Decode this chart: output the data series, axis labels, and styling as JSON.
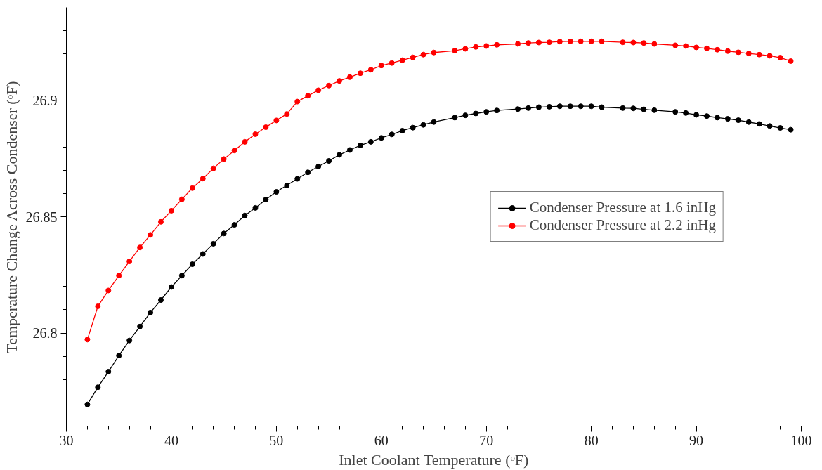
{
  "chart_data": {
    "type": "line",
    "xlabel": "Inlet Coolant Temperature (ᵒF)",
    "ylabel": "Temperature Change Across Condenser (ᵒF)",
    "xlim": [
      30,
      100
    ],
    "ylim": [
      26.76,
      26.94
    ],
    "xticks": [
      30,
      {
        "value": 32,
        "label": null
      },
      {
        "value": 34,
        "label": null
      },
      {
        "value": 36,
        "label": null
      },
      {
        "value": 38,
        "label": null
      },
      40,
      {
        "value": 42,
        "label": null
      },
      {
        "value": 44,
        "label": null
      },
      {
        "value": 46,
        "label": null
      },
      {
        "value": 48,
        "label": null
      },
      50,
      {
        "value": 52,
        "label": null
      },
      {
        "value": 54,
        "label": null
      },
      {
        "value": 56,
        "label": null
      },
      {
        "value": 58,
        "label": null
      },
      60,
      {
        "value": 62,
        "label": null
      },
      {
        "value": 64,
        "label": null
      },
      {
        "value": 66,
        "label": null
      },
      {
        "value": 68,
        "label": null
      },
      70,
      {
        "value": 72,
        "label": null
      },
      {
        "value": 74,
        "label": null
      },
      {
        "value": 76,
        "label": null
      },
      {
        "value": 78,
        "label": null
      },
      80,
      {
        "value": 82,
        "label": null
      },
      {
        "value": 84,
        "label": null
      },
      {
        "value": 86,
        "label": null
      },
      {
        "value": 88,
        "label": null
      },
      90,
      {
        "value": 92,
        "label": null
      },
      {
        "value": 94,
        "label": null
      },
      {
        "value": 96,
        "label": null
      },
      {
        "value": 98,
        "label": null
      },
      100
    ],
    "yticks": [
      {
        "value": 26.76,
        "label": null
      },
      {
        "value": 26.77,
        "label": null
      },
      {
        "value": 26.78,
        "label": null
      },
      {
        "value": 26.79,
        "label": null
      },
      26.8,
      {
        "value": 26.81,
        "label": null
      },
      {
        "value": 26.82,
        "label": null
      },
      {
        "value": 26.83,
        "label": null
      },
      {
        "value": 26.84,
        "label": null
      },
      26.85,
      {
        "value": 26.86,
        "label": null
      },
      {
        "value": 26.87,
        "label": null
      },
      {
        "value": 26.88,
        "label": null
      },
      {
        "value": 26.89,
        "label": null
      },
      26.9,
      {
        "value": 26.91,
        "label": null
      },
      {
        "value": 26.92,
        "label": null
      },
      {
        "value": 26.93,
        "label": null
      }
    ],
    "grid": false,
    "legend": "right",
    "marker": "circle",
    "line_style": "solid",
    "series": [
      {
        "name": "Condenser Pressure at 1.6 inHg",
        "color": "#000000",
        "x": [
          32,
          33,
          34,
          35,
          36,
          37,
          38,
          39,
          40,
          41,
          42,
          43,
          44,
          45,
          46,
          47,
          48,
          49,
          50,
          51,
          52,
          53,
          54,
          55,
          56,
          57,
          58,
          59,
          60,
          61,
          62,
          63,
          64,
          65,
          67,
          68,
          69,
          70,
          71,
          73,
          74,
          75,
          76,
          77,
          78,
          79,
          80,
          81,
          83,
          84,
          85,
          86,
          88,
          89,
          90,
          91,
          92,
          93,
          94,
          95,
          96,
          97,
          98,
          99
        ],
        "values": [
          26.7693,
          26.7767,
          26.7834,
          26.7903,
          26.7968,
          26.8028,
          26.8088,
          26.8142,
          26.8198,
          26.8247,
          26.8296,
          26.834,
          26.8384,
          26.8428,
          26.8465,
          26.8505,
          26.8538,
          26.8574,
          26.8607,
          26.8635,
          26.8663,
          26.8691,
          26.8716,
          26.874,
          26.8766,
          26.8787,
          26.8807,
          26.8822,
          26.8839,
          26.8854,
          26.887,
          26.8883,
          26.8895,
          26.8907,
          26.8926,
          26.8936,
          26.8944,
          26.8951,
          26.8957,
          26.8963,
          26.8967,
          26.8971,
          26.8973,
          26.8975,
          26.8975,
          26.8975,
          26.8975,
          26.8971,
          26.8967,
          26.8966,
          26.8962,
          26.8958,
          26.8951,
          26.8946,
          26.8938,
          26.8933,
          26.8926,
          26.8921,
          26.8915,
          26.8907,
          26.8899,
          26.889,
          26.8882,
          26.8874
        ]
      },
      {
        "name": "Condenser Pressure at 2.2 inHg",
        "color": "#ff0000",
        "x": [
          32,
          33,
          34,
          35,
          36,
          37,
          38,
          39,
          40,
          41,
          42,
          43,
          44,
          45,
          46,
          47,
          48,
          49,
          50,
          51,
          52,
          53,
          54,
          55,
          56,
          57,
          58,
          59,
          60,
          61,
          62,
          63,
          64,
          65,
          67,
          68,
          69,
          70,
          71,
          73,
          74,
          75,
          76,
          77,
          78,
          79,
          80,
          81,
          83,
          84,
          85,
          86,
          88,
          89,
          90,
          91,
          92,
          93,
          94,
          95,
          96,
          97,
          98,
          99
        ],
        "values": [
          26.7972,
          26.8115,
          26.8183,
          26.8247,
          26.8308,
          26.8368,
          26.8422,
          26.8478,
          26.8526,
          26.8575,
          26.8623,
          26.8664,
          26.8708,
          26.8748,
          26.8785,
          26.8822,
          26.8855,
          26.8885,
          26.8914,
          26.8942,
          26.8995,
          26.902,
          26.9044,
          26.9064,
          26.9084,
          26.91,
          26.9117,
          26.9132,
          26.915,
          26.9161,
          26.9173,
          26.9185,
          26.9197,
          26.9206,
          26.9214,
          26.9222,
          26.923,
          26.9234,
          26.9239,
          26.9243,
          26.9247,
          26.9249,
          26.925,
          26.9253,
          26.9254,
          26.9254,
          26.9254,
          26.9254,
          26.925,
          26.9249,
          26.9247,
          26.9243,
          26.9237,
          26.9234,
          26.9228,
          26.9224,
          26.9218,
          26.9212,
          26.9207,
          26.9202,
          26.9197,
          26.9192,
          26.9184,
          26.9169
        ]
      }
    ]
  }
}
